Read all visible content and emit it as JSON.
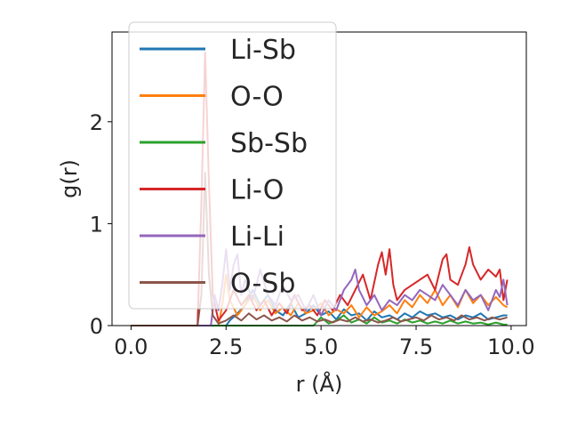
{
  "chart_data": {
    "type": "line",
    "xlabel": "r (Å)",
    "ylabel": "g(r)",
    "xlim": [
      -0.5,
      10.4
    ],
    "ylim": [
      0,
      2.88
    ],
    "xticks": [
      0.0,
      2.5,
      5.0,
      7.5,
      10.0
    ],
    "xtick_labels": [
      "0.0",
      "2.5",
      "5.0",
      "7.5",
      "10.0"
    ],
    "yticks": [
      0,
      1,
      2
    ],
    "ytick_labels": [
      "0",
      "1",
      "2"
    ],
    "grid": false,
    "legend_position": "upper-left",
    "series": [
      {
        "name": "Li-Sb",
        "color": "#1f77b4",
        "points": [
          [
            0,
            0
          ],
          [
            2.5,
            0
          ],
          [
            2.6,
            0.05
          ],
          [
            2.8,
            0.12
          ],
          [
            3.0,
            0.2
          ],
          [
            3.2,
            0.35
          ],
          [
            3.4,
            0.2
          ],
          [
            3.6,
            0.3
          ],
          [
            3.8,
            0.15
          ],
          [
            4.0,
            0.1
          ],
          [
            4.2,
            0.22
          ],
          [
            4.4,
            0.08
          ],
          [
            4.6,
            0.12
          ],
          [
            4.8,
            0.2
          ],
          [
            5.0,
            0.1
          ],
          [
            5.2,
            0.14
          ],
          [
            5.4,
            0.06
          ],
          [
            5.6,
            0.16
          ],
          [
            5.8,
            0.1
          ],
          [
            6.0,
            0.12
          ],
          [
            6.2,
            0.05
          ],
          [
            6.4,
            0.14
          ],
          [
            6.6,
            0.08
          ],
          [
            6.8,
            0.1
          ],
          [
            7.0,
            0.06
          ],
          [
            7.2,
            0.12
          ],
          [
            7.4,
            0.08
          ],
          [
            7.6,
            0.14
          ],
          [
            7.8,
            0.1
          ],
          [
            8.0,
            0.12
          ],
          [
            8.2,
            0.08
          ],
          [
            8.4,
            0.1
          ],
          [
            8.6,
            0.06
          ],
          [
            8.8,
            0.1
          ],
          [
            9.0,
            0.08
          ],
          [
            9.2,
            0.12
          ],
          [
            9.4,
            0.06
          ],
          [
            9.6,
            0.08
          ],
          [
            9.8,
            0.1
          ],
          [
            9.9,
            0.1
          ]
        ]
      },
      {
        "name": "O-O",
        "color": "#ff7f0e",
        "points": [
          [
            0,
            0
          ],
          [
            2.3,
            0
          ],
          [
            2.4,
            0.2
          ],
          [
            2.5,
            0.5
          ],
          [
            2.6,
            0.25
          ],
          [
            2.8,
            0.1
          ],
          [
            3.0,
            0.2
          ],
          [
            3.2,
            0.3
          ],
          [
            3.4,
            0.15
          ],
          [
            3.6,
            0.25
          ],
          [
            3.8,
            0.12
          ],
          [
            4.0,
            0.18
          ],
          [
            4.2,
            0.1
          ],
          [
            4.4,
            0.22
          ],
          [
            4.6,
            0.12
          ],
          [
            4.8,
            0.15
          ],
          [
            5.0,
            0.22
          ],
          [
            5.2,
            0.1
          ],
          [
            5.4,
            0.16
          ],
          [
            5.6,
            0.12
          ],
          [
            5.8,
            0.2
          ],
          [
            6.0,
            0.08
          ],
          [
            6.2,
            0.18
          ],
          [
            6.4,
            0.1
          ],
          [
            6.6,
            0.14
          ],
          [
            6.8,
            0.2
          ],
          [
            7.0,
            0.12
          ],
          [
            7.2,
            0.25
          ],
          [
            7.4,
            0.18
          ],
          [
            7.6,
            0.3
          ],
          [
            7.8,
            0.22
          ],
          [
            8.0,
            0.35
          ],
          [
            8.2,
            0.2
          ],
          [
            8.4,
            0.3
          ],
          [
            8.6,
            0.18
          ],
          [
            8.8,
            0.35
          ],
          [
            9.0,
            0.22
          ],
          [
            9.2,
            0.3
          ],
          [
            9.4,
            0.2
          ],
          [
            9.6,
            0.28
          ],
          [
            9.8,
            0.2
          ],
          [
            9.9,
            0.18
          ]
        ]
      },
      {
        "name": "Sb-Sb",
        "color": "#2ca02c",
        "points": [
          [
            0,
            0
          ],
          [
            4.8,
            0
          ],
          [
            5.0,
            0.08
          ],
          [
            5.2,
            0.02
          ],
          [
            5.4,
            0.05
          ],
          [
            5.6,
            0.1
          ],
          [
            5.8,
            0.03
          ],
          [
            6.0,
            0.06
          ],
          [
            6.2,
            0.02
          ],
          [
            6.4,
            0.08
          ],
          [
            6.6,
            0.03
          ],
          [
            6.8,
            0.05
          ],
          [
            7.0,
            0.02
          ],
          [
            7.2,
            0.06
          ],
          [
            7.4,
            0.03
          ],
          [
            7.6,
            0.05
          ],
          [
            7.8,
            0.02
          ],
          [
            8.0,
            0.04
          ],
          [
            8.2,
            0.02
          ],
          [
            8.4,
            0.05
          ],
          [
            8.6,
            0.02
          ],
          [
            8.8,
            0.04
          ],
          [
            9.0,
            0.02
          ],
          [
            9.2,
            0.03
          ],
          [
            9.4,
            0.01
          ],
          [
            9.6,
            0.03
          ],
          [
            9.8,
            0.01
          ],
          [
            9.9,
            0.01
          ]
        ]
      },
      {
        "name": "Li-O",
        "color": "#d62728",
        "points": [
          [
            0,
            0
          ],
          [
            1.75,
            0
          ],
          [
            1.85,
            1.2
          ],
          [
            1.95,
            2.68
          ],
          [
            2.05,
            1.4
          ],
          [
            2.15,
            0.3
          ],
          [
            2.3,
            0.05
          ],
          [
            2.5,
            0.15
          ],
          [
            2.7,
            0.35
          ],
          [
            2.9,
            0.2
          ],
          [
            3.1,
            0.3
          ],
          [
            3.3,
            0.15
          ],
          [
            3.5,
            0.25
          ],
          [
            3.7,
            0.1
          ],
          [
            3.9,
            0.22
          ],
          [
            4.1,
            0.12
          ],
          [
            4.3,
            0.3
          ],
          [
            4.5,
            0.15
          ],
          [
            4.7,
            0.2
          ],
          [
            4.9,
            0.1
          ],
          [
            5.1,
            0.25
          ],
          [
            5.3,
            0.15
          ],
          [
            5.5,
            0.3
          ],
          [
            5.7,
            0.2
          ],
          [
            5.9,
            0.35
          ],
          [
            6.1,
            0.5
          ],
          [
            6.3,
            0.25
          ],
          [
            6.5,
            0.6
          ],
          [
            6.6,
            0.72
          ],
          [
            6.7,
            0.5
          ],
          [
            6.8,
            0.75
          ],
          [
            6.9,
            0.4
          ],
          [
            7.0,
            0.25
          ],
          [
            7.2,
            0.35
          ],
          [
            7.4,
            0.4
          ],
          [
            7.6,
            0.45
          ],
          [
            7.8,
            0.5
          ],
          [
            8.0,
            0.35
          ],
          [
            8.2,
            0.65
          ],
          [
            8.3,
            0.7
          ],
          [
            8.4,
            0.45
          ],
          [
            8.6,
            0.4
          ],
          [
            8.8,
            0.6
          ],
          [
            8.9,
            0.77
          ],
          [
            9.0,
            0.6
          ],
          [
            9.2,
            0.45
          ],
          [
            9.4,
            0.55
          ],
          [
            9.6,
            0.48
          ],
          [
            9.7,
            0.55
          ],
          [
            9.8,
            0.25
          ],
          [
            9.9,
            0.45
          ]
        ]
      },
      {
        "name": "Li-Li",
        "color": "#9467bd",
        "points": [
          [
            0,
            0
          ],
          [
            2.1,
            0
          ],
          [
            2.2,
            0.3
          ],
          [
            2.3,
            0.15
          ],
          [
            2.4,
            0.4
          ],
          [
            2.5,
            0.75
          ],
          [
            2.6,
            0.35
          ],
          [
            2.7,
            0.6
          ],
          [
            2.8,
            0.7
          ],
          [
            2.9,
            0.3
          ],
          [
            3.0,
            0.45
          ],
          [
            3.2,
            0.25
          ],
          [
            3.4,
            0.55
          ],
          [
            3.6,
            0.3
          ],
          [
            3.8,
            0.2
          ],
          [
            4.0,
            0.4
          ],
          [
            4.2,
            0.25
          ],
          [
            4.4,
            0.3
          ],
          [
            4.6,
            0.15
          ],
          [
            4.8,
            0.3
          ],
          [
            5.0,
            0.1
          ],
          [
            5.2,
            0.25
          ],
          [
            5.4,
            0.15
          ],
          [
            5.6,
            0.35
          ],
          [
            5.8,
            0.45
          ],
          [
            5.9,
            0.55
          ],
          [
            6.0,
            0.35
          ],
          [
            6.2,
            0.2
          ],
          [
            6.4,
            0.3
          ],
          [
            6.6,
            0.15
          ],
          [
            6.8,
            0.25
          ],
          [
            7.0,
            0.2
          ],
          [
            7.2,
            0.3
          ],
          [
            7.4,
            0.25
          ],
          [
            7.6,
            0.35
          ],
          [
            7.8,
            0.3
          ],
          [
            8.0,
            0.25
          ],
          [
            8.2,
            0.4
          ],
          [
            8.4,
            0.3
          ],
          [
            8.6,
            0.2
          ],
          [
            8.8,
            0.35
          ],
          [
            9.0,
            0.25
          ],
          [
            9.2,
            0.3
          ],
          [
            9.4,
            0.15
          ],
          [
            9.6,
            0.35
          ],
          [
            9.7,
            0.28
          ],
          [
            9.8,
            0.45
          ],
          [
            9.9,
            0.2
          ]
        ]
      },
      {
        "name": "O-Sb",
        "color": "#8c564b",
        "points": [
          [
            0,
            0
          ],
          [
            1.75,
            0
          ],
          [
            1.85,
            0.3
          ],
          [
            1.95,
            1.5
          ],
          [
            2.05,
            0.5
          ],
          [
            2.15,
            0.1
          ],
          [
            2.3,
            0.02
          ],
          [
            2.5,
            0.05
          ],
          [
            2.7,
            0.1
          ],
          [
            2.9,
            0.05
          ],
          [
            3.1,
            0.12
          ],
          [
            3.3,
            0.06
          ],
          [
            3.5,
            0.1
          ],
          [
            3.7,
            0.05
          ],
          [
            3.9,
            0.08
          ],
          [
            4.1,
            0.04
          ],
          [
            4.3,
            0.1
          ],
          [
            4.5,
            0.05
          ],
          [
            4.7,
            0.08
          ],
          [
            4.9,
            0.04
          ],
          [
            5.1,
            0.06
          ],
          [
            5.3,
            0.03
          ],
          [
            5.5,
            0.06
          ],
          [
            5.7,
            0.04
          ],
          [
            5.9,
            0.08
          ],
          [
            6.1,
            0.04
          ],
          [
            6.3,
            0.06
          ],
          [
            6.5,
            0.03
          ],
          [
            6.7,
            0.05
          ],
          [
            6.9,
            0.08
          ],
          [
            7.1,
            0.04
          ],
          [
            7.3,
            0.06
          ],
          [
            7.5,
            0.08
          ],
          [
            7.7,
            0.05
          ],
          [
            7.9,
            0.1
          ],
          [
            8.1,
            0.06
          ],
          [
            8.3,
            0.08
          ],
          [
            8.5,
            0.05
          ],
          [
            8.7,
            0.1
          ],
          [
            8.9,
            0.06
          ],
          [
            9.1,
            0.08
          ],
          [
            9.3,
            0.05
          ],
          [
            9.5,
            0.08
          ],
          [
            9.7,
            0.06
          ],
          [
            9.9,
            0.08
          ]
        ]
      }
    ]
  }
}
